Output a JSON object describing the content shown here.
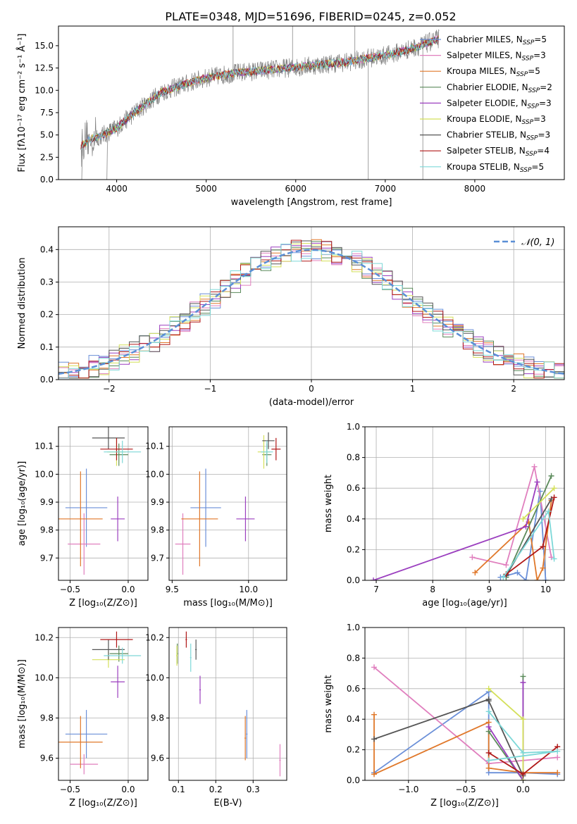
{
  "title": "PLATE=0348, MJD=51696, FIBERID=0245, z=0.052",
  "model_colors": [
    "#6a8fd8",
    "#e07fbe",
    "#e0782a",
    "#5a8a5a",
    "#9b3fbf",
    "#d4e05a",
    "#555555",
    "#b01818",
    "#7dd8d8"
  ],
  "spectrum_color": "#808080",
  "chart_data": [
    {
      "id": "spectrum",
      "type": "line",
      "xlabel": "wavelength [Angstrom, rest frame]",
      "ylabel": "Flux [fλ10⁻¹⁷ erg cm⁻² s⁻¹ Å⁻¹]",
      "xlim": [
        3350,
        9000
      ],
      "ylim": [
        0,
        17.2
      ],
      "xticks": [
        "4000",
        "5000",
        "6000",
        "7000",
        "8000"
      ],
      "yticks": [
        "0.0",
        "2.5",
        "5.0",
        "7.5",
        "10.0",
        "12.5",
        "15.0"
      ],
      "legend_position": "upper right",
      "continuum": {
        "x": [
          3600,
          3700,
          3850,
          4000,
          4200,
          4500,
          4800,
          5000,
          5300,
          5600,
          6000,
          6300,
          6600,
          6800,
          7000,
          7200,
          7400,
          7600
        ],
        "y": [
          3.8,
          4.5,
          5.0,
          5.8,
          7.5,
          9.8,
          10.8,
          11.4,
          11.9,
          12.2,
          12.6,
          12.9,
          13.2,
          13.6,
          13.9,
          14.4,
          15.0,
          15.8
        ]
      },
      "series": [
        {
          "name": "Chabrier MILES, N_SSP=5",
          "label": "Chabrier MILES, N",
          "sub": "SSP",
          "suffix": "=5"
        },
        {
          "name": "Salpeter MILES, N_SSP=3",
          "label": "Salpeter MILES, N",
          "sub": "SSP",
          "suffix": "=3"
        },
        {
          "name": "Kroupa MILES, N_SSP=5",
          "label": "Kroupa MILES, N",
          "sub": "SSP",
          "suffix": "=5"
        },
        {
          "name": "Chabrier ELODIE, N_SSP=2",
          "label": "Chabrier ELODIE, N",
          "sub": "SSP",
          "suffix": "=2"
        },
        {
          "name": "Salpeter ELODIE, N_SSP=3",
          "label": "Salpeter ELODIE, N",
          "sub": "SSP",
          "suffix": "=3"
        },
        {
          "name": "Kroupa ELODIE, N_SSP=3",
          "label": "Kroupa ELODIE, N",
          "sub": "SSP",
          "suffix": "=3"
        },
        {
          "name": "Chabrier STELIB, N_SSP=3",
          "label": "Chabrier STELIB, N",
          "sub": "SSP",
          "suffix": "=3"
        },
        {
          "name": "Salpeter STELIB, N_SSP=4",
          "label": "Salpeter STELIB, N",
          "sub": "SSP",
          "suffix": "=4"
        },
        {
          "name": "Kroupa STELIB, N_SSP=5",
          "label": "Kroupa STELIB, N",
          "sub": "SSP",
          "suffix": "=5"
        }
      ]
    },
    {
      "id": "residuals",
      "type": "line",
      "xlabel": "(data-model)/error",
      "ylabel": "Normed distribution",
      "xlim": [
        -2.5,
        2.5
      ],
      "ylim": [
        0,
        0.47
      ],
      "xticks": [
        -2,
        -1,
        0,
        1,
        2
      ],
      "xtick_labels": [
        "−2",
        "−1",
        "0",
        "1",
        "2"
      ],
      "yticks": [
        0.0,
        0.1,
        0.2,
        0.3,
        0.4
      ],
      "ytick_labels": [
        "0.0",
        "0.1",
        "0.2",
        "0.3",
        "0.4"
      ],
      "grid": true,
      "legend": "𝒩(0, 1)",
      "legend_position": "upper right",
      "normal": {
        "mean": 0,
        "sigma": 1
      }
    },
    {
      "id": "age_vs_Z",
      "type": "scatter",
      "xlabel": "Z [log₁₀(Z/Z⊙)]",
      "ylabel": "age  [log₁₀(age/yr)]",
      "xlim": [
        -0.6,
        0.17
      ],
      "ylim": [
        9.62,
        10.17
      ],
      "xticks": [
        -0.5,
        0.0
      ],
      "xtick_labels": [
        "−0.5",
        "0.0"
      ],
      "yticks": [
        9.7,
        9.8,
        9.9,
        10.0,
        10.1
      ],
      "ytick_labels": [
        "9.7",
        "9.8",
        "9.9",
        "10.0",
        "10.1"
      ],
      "grid": true,
      "points": [
        {
          "x": -0.36,
          "y": 9.88,
          "xerr": 0.18,
          "yerr": 0.14
        },
        {
          "x": -0.38,
          "y": 9.75,
          "xerr": 0.14,
          "yerr": 0.11
        },
        {
          "x": -0.41,
          "y": 9.84,
          "xerr": 0.19,
          "yerr": 0.17
        },
        {
          "x": -0.08,
          "y": 10.07,
          "xerr": 0.08,
          "yerr": 0.04
        },
        {
          "x": -0.09,
          "y": 9.84,
          "xerr": 0.06,
          "yerr": 0.08
        },
        {
          "x": -0.1,
          "y": 10.08,
          "xerr": 0.08,
          "yerr": 0.05
        },
        {
          "x": -0.17,
          "y": 10.13,
          "xerr": 0.14,
          "yerr": 0.04
        },
        {
          "x": -0.1,
          "y": 10.09,
          "xerr": 0.14,
          "yerr": 0.04
        },
        {
          "x": -0.05,
          "y": 10.08,
          "xerr": 0.16,
          "yerr": 0.04
        }
      ]
    },
    {
      "id": "age_vs_mass",
      "type": "scatter",
      "xlabel": "mass [log₁₀(M/M⊙)]",
      "ylabel": "",
      "xlim": [
        9.48,
        10.25
      ],
      "ylim": [
        9.62,
        10.17
      ],
      "xticks": [
        9.5,
        10.0
      ],
      "xtick_labels": [
        "9.5",
        "10.0"
      ],
      "yticks": [
        9.7,
        9.8,
        9.9,
        10.0,
        10.1
      ],
      "ytick_labels": [
        "9.7",
        "9.8",
        "9.9",
        "10.0",
        "10.1"
      ],
      "grid": true,
      "points": [
        {
          "x": 9.72,
          "y": 9.88,
          "xerr": 0.1,
          "yerr": 0.14
        },
        {
          "x": 9.57,
          "y": 9.75,
          "xerr": 0.05,
          "yerr": 0.11
        },
        {
          "x": 9.68,
          "y": 9.84,
          "xerr": 0.12,
          "yerr": 0.17
        },
        {
          "x": 10.12,
          "y": 10.07,
          "xerr": 0.03,
          "yerr": 0.04
        },
        {
          "x": 9.98,
          "y": 9.84,
          "xerr": 0.06,
          "yerr": 0.08
        },
        {
          "x": 10.1,
          "y": 10.08,
          "xerr": 0.04,
          "yerr": 0.06
        },
        {
          "x": 10.13,
          "y": 10.12,
          "xerr": 0.04,
          "yerr": 0.03
        },
        {
          "x": 10.18,
          "y": 10.09,
          "xerr": 0.03,
          "yerr": 0.04
        },
        {
          "x": 10.12,
          "y": 10.08,
          "xerr": 0.04,
          "yerr": 0.04
        }
      ]
    },
    {
      "id": "weight_vs_age",
      "type": "line",
      "xlabel": "age  [log₁₀(age/yr)]",
      "ylabel": "mass weight",
      "xlim": [
        6.8,
        10.33
      ],
      "ylim": [
        0,
        1.0
      ],
      "xticks": [
        7,
        8,
        9,
        10
      ],
      "xtick_labels": [
        "7",
        "8",
        "9",
        "10"
      ],
      "yticks": [
        0.0,
        0.2,
        0.4,
        0.6,
        0.8,
        1.0
      ],
      "ytick_labels": [
        "0.0",
        "0.2",
        "0.4",
        "0.6",
        "0.8",
        "1.0"
      ],
      "grid": true,
      "series": [
        {
          "x": [
            9.2,
            9.5,
            9.65,
            9.9,
            10.0
          ],
          "y": [
            0.02,
            0.05,
            0.0,
            0.58,
            0.0
          ]
        },
        {
          "x": [
            8.7,
            9.3,
            9.8,
            10.1
          ],
          "y": [
            0.15,
            0.1,
            0.74,
            0.15
          ]
        },
        {
          "x": [
            8.75,
            9.7,
            9.85,
            9.95,
            10.1
          ],
          "y": [
            0.05,
            0.38,
            0.0,
            0.08,
            0.52
          ]
        },
        {
          "x": [
            9.3,
            10.1
          ],
          "y": [
            0.02,
            0.68
          ]
        },
        {
          "x": [
            6.95,
            9.65,
            9.85
          ],
          "y": [
            0.0,
            0.35,
            0.64
          ]
        },
        {
          "x": [
            9.6,
            10.15
          ],
          "y": [
            0.4,
            0.6
          ]
        },
        {
          "x": [
            9.3,
            10.1
          ],
          "y": [
            0.03,
            0.53
          ]
        },
        {
          "x": [
            9.3,
            9.95,
            10.15
          ],
          "y": [
            0.04,
            0.22,
            0.54
          ]
        },
        {
          "x": [
            9.25,
            10.05,
            10.15
          ],
          "y": [
            0.02,
            0.45,
            0.14
          ]
        }
      ]
    },
    {
      "id": "mass_vs_Z",
      "type": "scatter",
      "xlabel": "Z [log₁₀(Z/Z⊙)]",
      "ylabel": "mass [log₁₀(M/M⊙)]",
      "xlim": [
        -0.6,
        0.17
      ],
      "ylim": [
        9.49,
        10.25
      ],
      "xticks": [
        -0.5,
        0.0
      ],
      "xtick_labels": [
        "−0.5",
        "0.0"
      ],
      "yticks": [
        9.6,
        9.8,
        10.0,
        10.2
      ],
      "ytick_labels": [
        "9.6",
        "9.8",
        "10.0",
        "10.2"
      ],
      "grid": true,
      "points": [
        {
          "x": -0.36,
          "y": 9.72,
          "xerr": 0.18,
          "yerr": 0.12
        },
        {
          "x": -0.38,
          "y": 9.57,
          "xerr": 0.12,
          "yerr": 0.05
        },
        {
          "x": -0.41,
          "y": 9.68,
          "xerr": 0.19,
          "yerr": 0.13
        },
        {
          "x": -0.08,
          "y": 10.12,
          "xerr": 0.08,
          "yerr": 0.04
        },
        {
          "x": -0.09,
          "y": 9.98,
          "xerr": 0.06,
          "yerr": 0.08
        },
        {
          "x": -0.17,
          "y": 10.09,
          "xerr": 0.14,
          "yerr": 0.04
        },
        {
          "x": -0.17,
          "y": 10.14,
          "xerr": 0.14,
          "yerr": 0.05
        },
        {
          "x": -0.1,
          "y": 10.19,
          "xerr": 0.14,
          "yerr": 0.04
        },
        {
          "x": -0.05,
          "y": 10.11,
          "xerr": 0.16,
          "yerr": 0.04
        }
      ]
    },
    {
      "id": "mass_vs_ebv",
      "type": "scatter",
      "xlabel": "E(B-V)",
      "ylabel": "",
      "xlim": [
        0.075,
        0.39
      ],
      "ylim": [
        9.49,
        10.25
      ],
      "xticks": [
        0.1,
        0.2,
        0.3
      ],
      "xtick_labels": [
        "0.1",
        "0.2",
        "0.3"
      ],
      "yticks": [
        9.6,
        9.8,
        10.0,
        10.2
      ],
      "ytick_labels": [
        "9.6",
        "9.8",
        "10.0",
        "10.2"
      ],
      "grid": true,
      "points": [
        {
          "x": 0.283,
          "y": 9.72,
          "xerr": 0.002,
          "yerr": 0.12
        },
        {
          "x": 0.372,
          "y": 9.59,
          "xerr": 0.002,
          "yerr": 0.08
        },
        {
          "x": 0.279,
          "y": 9.7,
          "xerr": 0.002,
          "yerr": 0.11
        },
        {
          "x": 0.097,
          "y": 10.12,
          "xerr": 0.002,
          "yerr": 0.05
        },
        {
          "x": 0.158,
          "y": 9.94,
          "xerr": 0.002,
          "yerr": 0.07
        },
        {
          "x": 0.096,
          "y": 10.11,
          "xerr": 0.002,
          "yerr": 0.05
        },
        {
          "x": 0.147,
          "y": 10.14,
          "xerr": 0.002,
          "yerr": 0.05
        },
        {
          "x": 0.121,
          "y": 10.19,
          "xerr": 0.002,
          "yerr": 0.04
        },
        {
          "x": 0.133,
          "y": 10.1,
          "xerr": 0.002,
          "yerr": 0.07
        }
      ]
    },
    {
      "id": "weight_vs_Z",
      "type": "line",
      "xlabel": "Z [log₁₀(Z/Z⊙)]",
      "ylabel": "mass weight",
      "xlim": [
        -1.38,
        0.36
      ],
      "ylim": [
        0,
        1.0
      ],
      "xticks": [
        -1.0,
        -0.5,
        0.0
      ],
      "xtick_labels": [
        "−1.0",
        "−0.5",
        "0.0"
      ],
      "yticks": [
        0.0,
        0.2,
        0.4,
        0.6,
        0.8,
        1.0
      ],
      "ytick_labels": [
        "0.0",
        "0.2",
        "0.4",
        "0.6",
        "0.8",
        "1.0"
      ],
      "grid": true,
      "series": [
        {
          "x": [
            -1.3,
            -0.3,
            -0.3,
            0.0,
            0.3
          ],
          "y": [
            0.05,
            0.58,
            0.05,
            0.05,
            0.04
          ]
        },
        {
          "x": [
            -1.3,
            -0.3,
            0.3
          ],
          "y": [
            0.74,
            0.11,
            0.15
          ]
        },
        {
          "x": [
            -1.3,
            -1.3,
            -0.3,
            -0.3,
            0.0,
            0.3
          ],
          "y": [
            0.43,
            0.04,
            0.38,
            0.08,
            0.05,
            0.05
          ]
        },
        {
          "x": [
            -0.3,
            0.0,
            0.0
          ],
          "y": [
            0.32,
            0.0,
            0.68
          ]
        },
        {
          "x": [
            -0.3,
            0.0,
            0.0
          ],
          "y": [
            0.35,
            0.0,
            0.64
          ]
        },
        {
          "x": [
            -0.3,
            0.0,
            0.0
          ],
          "y": [
            0.6,
            0.4,
            0.0
          ]
        },
        {
          "x": [
            -1.3,
            -0.3,
            -0.3,
            0.0
          ],
          "y": [
            0.27,
            0.53,
            0.52,
            0.03
          ]
        },
        {
          "x": [
            -0.3,
            0.0,
            0.3
          ],
          "y": [
            0.18,
            0.04,
            0.22
          ]
        },
        {
          "x": [
            -0.3,
            0.0,
            0.3,
            -0.3
          ],
          "y": [
            0.45,
            0.18,
            0.19,
            0.13
          ]
        }
      ]
    }
  ]
}
